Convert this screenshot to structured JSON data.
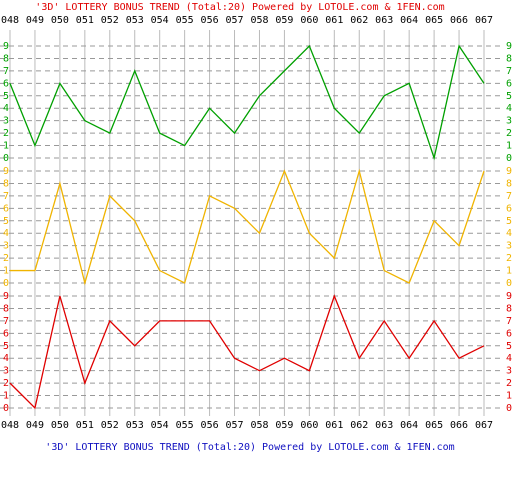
{
  "chart_data": {
    "type": "line",
    "title": "'3D' LOTTERY BONUS TREND (Total:20)  Powered by LOTOLE.com & 1FEN.com",
    "categories": [
      "048",
      "049",
      "050",
      "051",
      "052",
      "053",
      "054",
      "055",
      "056",
      "057",
      "058",
      "059",
      "060",
      "061",
      "062",
      "063",
      "064",
      "065",
      "066",
      "067"
    ],
    "series": [
      {
        "color": "#00a000",
        "values": [
          6,
          1,
          6,
          3,
          2,
          7,
          2,
          1,
          4,
          2,
          5,
          7,
          9,
          4,
          2,
          5,
          6,
          0,
          9,
          6
        ]
      },
      {
        "color": "#f0b400",
        "values": [
          1,
          1,
          8,
          0,
          7,
          5,
          1,
          0,
          7,
          6,
          4,
          9,
          4,
          2,
          9,
          1,
          0,
          5,
          3,
          9
        ]
      },
      {
        "color": "#e00000",
        "values": [
          2,
          0,
          9,
          2,
          7,
          5,
          7,
          7,
          7,
          4,
          3,
          4,
          3,
          9,
          4,
          7,
          4,
          7,
          4,
          5
        ]
      }
    ],
    "ylim": [
      0,
      9
    ],
    "yticks": [
      0,
      1,
      2,
      3,
      4,
      5,
      6,
      7,
      8,
      9
    ],
    "grid": true
  }
}
